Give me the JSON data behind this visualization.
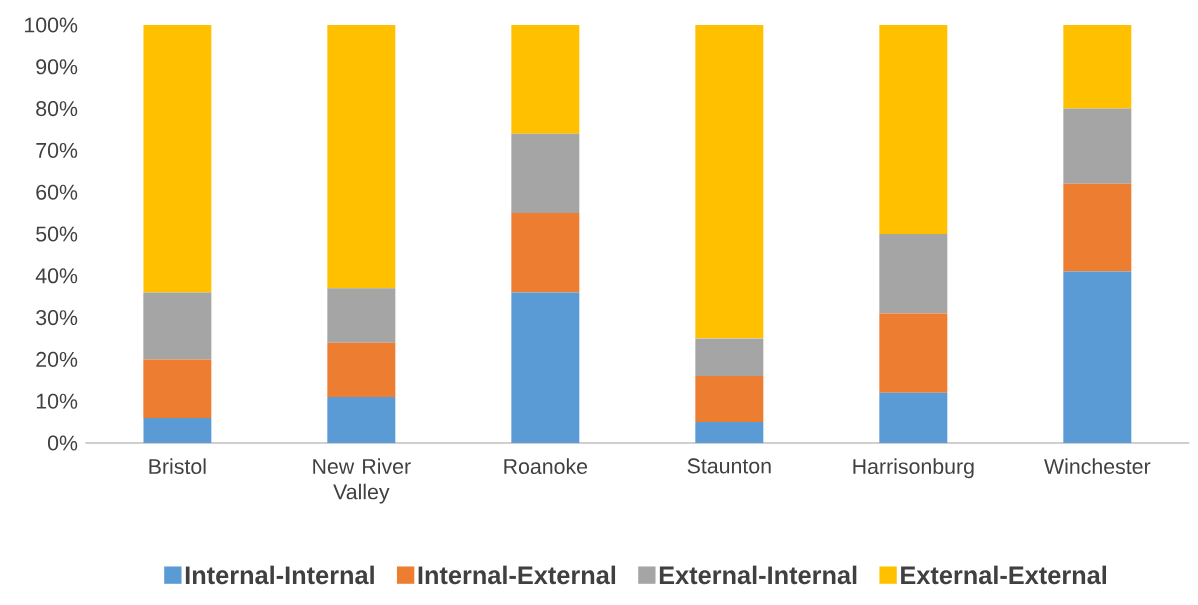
{
  "chart_data": {
    "type": "bar",
    "stacked": true,
    "categories": [
      "Bristol",
      "New River Valley",
      "Roanoke",
      "Staunton",
      "Harrisonburg",
      "Winchester"
    ],
    "series": [
      {
        "name": "Internal-Internal",
        "color": "#5b9bd5",
        "values": [
          6,
          11,
          36,
          5,
          12,
          41
        ]
      },
      {
        "name": "Internal-External",
        "color": "#ed7d31",
        "values": [
          14,
          13,
          19,
          11,
          19,
          21
        ]
      },
      {
        "name": "External-Internal",
        "color": "#a5a5a5",
        "values": [
          16,
          13,
          19,
          9,
          19,
          18
        ]
      },
      {
        "name": "External-External",
        "color": "#ffc000",
        "values": [
          64,
          63,
          26,
          75,
          50,
          20
        ]
      }
    ],
    "ylim": [
      0,
      100
    ],
    "yticks": [
      {
        "value": 0,
        "label": "0%"
      },
      {
        "value": 10,
        "label": "10%"
      },
      {
        "value": 20,
        "label": "20%"
      },
      {
        "value": 30,
        "label": "30%"
      },
      {
        "value": 40,
        "label": "40%"
      },
      {
        "value": 50,
        "label": "50%"
      },
      {
        "value": 60,
        "label": "60%"
      },
      {
        "value": 70,
        "label": "70%"
      },
      {
        "value": 80,
        "label": "80%"
      },
      {
        "value": 90,
        "label": "90%"
      },
      {
        "value": 100,
        "label": "100%"
      }
    ],
    "legend": "bottom"
  }
}
